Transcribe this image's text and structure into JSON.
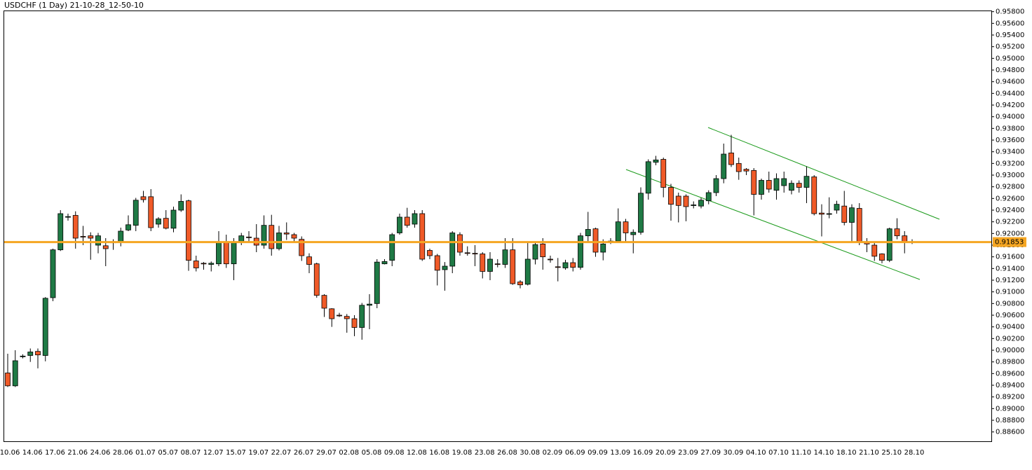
{
  "chart_data": {
    "type": "candlestick",
    "title": "USDCHF (1 Day) 21-10-28_12-50-10",
    "categories": [
      "10.06",
      null,
      null,
      "14.06",
      null,
      null,
      "17.06",
      null,
      null,
      "21.06",
      null,
      null,
      "24.06",
      null,
      null,
      "28.06",
      null,
      null,
      "01.07",
      null,
      null,
      "05.07",
      null,
      null,
      "08.07",
      null,
      null,
      "12.07",
      null,
      null,
      "15.07",
      null,
      null,
      "19.07",
      null,
      null,
      "22.07",
      null,
      null,
      "26.07",
      null,
      null,
      "29.07",
      null,
      null,
      "02.08",
      null,
      null,
      "05.08",
      null,
      null,
      "09.08",
      null,
      null,
      "12.08",
      null,
      null,
      "16.08",
      null,
      null,
      "19.08",
      null,
      null,
      "23.08",
      null,
      null,
      "26.08",
      null,
      null,
      "30.08",
      null,
      null,
      "02.09",
      null,
      null,
      "06.09",
      null,
      null,
      "09.09",
      null,
      null,
      "13.09",
      null,
      null,
      "16.09",
      null,
      null,
      "20.09",
      null,
      null,
      "23.09",
      null,
      null,
      "27.09",
      null,
      null,
      "30.09",
      null,
      null,
      "04.10",
      null,
      null,
      "07.10",
      null,
      null,
      "11.10",
      null,
      null,
      "14.10",
      null,
      null,
      "18.10",
      null,
      null,
      "21.10",
      null,
      null,
      "25.10",
      null,
      null,
      "28.10"
    ],
    "ohlc": [
      [
        0.8961,
        0.8994,
        0.8937,
        0.8939
      ],
      [
        0.8939,
        0.9,
        0.8937,
        0.8982
      ],
      [
        0.8989,
        0.8993,
        0.8986,
        0.899
      ],
      [
        0.8991,
        0.9003,
        0.898,
        0.8997
      ],
      [
        0.8998,
        0.9003,
        0.8969,
        0.8992
      ],
      [
        0.8991,
        0.9091,
        0.8981,
        0.9089
      ],
      [
        0.909,
        0.9174,
        0.9084,
        0.9172
      ],
      [
        0.9172,
        0.924,
        0.917,
        0.9234
      ],
      [
        0.9228,
        0.9234,
        0.9222,
        0.9229
      ],
      [
        0.9231,
        0.9238,
        0.9174,
        0.9192
      ],
      [
        0.9195,
        0.9213,
        0.918,
        0.9194
      ],
      [
        0.9196,
        0.9202,
        0.9155,
        0.9192
      ],
      [
        0.918,
        0.9201,
        0.9166,
        0.9196
      ],
      [
        0.9179,
        0.9192,
        0.9144,
        0.9174
      ],
      [
        0.9184,
        0.919,
        0.9172,
        0.9186
      ],
      [
        0.9186,
        0.921,
        0.9178,
        0.9204
      ],
      [
        0.9206,
        0.9231,
        0.9204,
        0.9215
      ],
      [
        0.9214,
        0.9261,
        0.9204,
        0.9257
      ],
      [
        0.9263,
        0.9273,
        0.9253,
        0.9258
      ],
      [
        0.9263,
        0.9276,
        0.9204,
        0.921
      ],
      [
        0.9216,
        0.9228,
        0.921,
        0.9225
      ],
      [
        0.9226,
        0.924,
        0.9207,
        0.9209
      ],
      [
        0.9209,
        0.9246,
        0.9202,
        0.924
      ],
      [
        0.924,
        0.9267,
        0.9237,
        0.9255
      ],
      [
        0.9256,
        0.9258,
        0.9136,
        0.9154
      ],
      [
        0.9153,
        0.9162,
        0.9135,
        0.9141
      ],
      [
        0.9149,
        0.9151,
        0.9138,
        0.9148
      ],
      [
        0.9147,
        0.9152,
        0.9135,
        0.9149
      ],
      [
        0.9148,
        0.9204,
        0.9144,
        0.9184
      ],
      [
        0.9185,
        0.9198,
        0.9141,
        0.9148
      ],
      [
        0.9148,
        0.9192,
        0.912,
        0.9186
      ],
      [
        0.9186,
        0.9201,
        0.918,
        0.9196
      ],
      [
        0.9194,
        0.9204,
        0.9186,
        0.9193
      ],
      [
        0.9192,
        0.9216,
        0.9168,
        0.918
      ],
      [
        0.918,
        0.9231,
        0.9174,
        0.9214
      ],
      [
        0.9214,
        0.9232,
        0.9162,
        0.9174
      ],
      [
        0.9174,
        0.9213,
        0.9171,
        0.9201
      ],
      [
        0.9201,
        0.9219,
        0.9189,
        0.9199
      ],
      [
        0.9198,
        0.9201,
        0.9186,
        0.9192
      ],
      [
        0.919,
        0.9195,
        0.9153,
        0.9162
      ],
      [
        0.916,
        0.9166,
        0.9132,
        0.9147
      ],
      [
        0.9148,
        0.915,
        0.909,
        0.9094
      ],
      [
        0.9094,
        0.9096,
        0.9057,
        0.9072
      ],
      [
        0.9071,
        0.9072,
        0.904,
        0.9054
      ],
      [
        0.906,
        0.9064,
        0.9057,
        0.9059
      ],
      [
        0.9058,
        0.9062,
        0.903,
        0.9054
      ],
      [
        0.9054,
        0.906,
        0.9024,
        0.9039
      ],
      [
        0.9039,
        0.9081,
        0.9018,
        0.9077
      ],
      [
        0.9077,
        0.9096,
        0.9036,
        0.9079
      ],
      [
        0.908,
        0.9156,
        0.9072,
        0.9151
      ],
      [
        0.9148,
        0.9156,
        0.9147,
        0.9152
      ],
      [
        0.9154,
        0.9201,
        0.9144,
        0.9198
      ],
      [
        0.9201,
        0.9234,
        0.9198,
        0.9228
      ],
      [
        0.9228,
        0.9244,
        0.921,
        0.9214
      ],
      [
        0.9216,
        0.924,
        0.921,
        0.9234
      ],
      [
        0.9234,
        0.924,
        0.9153,
        0.9156
      ],
      [
        0.9171,
        0.9174,
        0.9156,
        0.9162
      ],
      [
        0.9162,
        0.9165,
        0.9111,
        0.9137
      ],
      [
        0.9138,
        0.9151,
        0.9102,
        0.9144
      ],
      [
        0.9144,
        0.9204,
        0.9132,
        0.9201
      ],
      [
        0.9198,
        0.9202,
        0.9162,
        0.9168
      ],
      [
        0.9167,
        0.9178,
        0.9162,
        0.9166
      ],
      [
        0.9166,
        0.918,
        0.9144,
        0.9165
      ],
      [
        0.9165,
        0.9168,
        0.9123,
        0.9135
      ],
      [
        0.9135,
        0.9168,
        0.912,
        0.9156
      ],
      [
        0.9148,
        0.9156,
        0.9142,
        0.9147
      ],
      [
        0.9147,
        0.9192,
        0.9141,
        0.9172
      ],
      [
        0.9172,
        0.9192,
        0.9112,
        0.9114
      ],
      [
        0.9117,
        0.912,
        0.9106,
        0.9112
      ],
      [
        0.9113,
        0.9186,
        0.9111,
        0.9156
      ],
      [
        0.9156,
        0.9186,
        0.9147,
        0.9181
      ],
      [
        0.9182,
        0.9192,
        0.9138,
        0.916
      ],
      [
        0.9156,
        0.9162,
        0.915,
        0.9155
      ],
      [
        0.9143,
        0.9158,
        0.9118,
        0.9142
      ],
      [
        0.9141,
        0.9155,
        0.9138,
        0.915
      ],
      [
        0.915,
        0.9158,
        0.9135,
        0.9142
      ],
      [
        0.9142,
        0.9201,
        0.9138,
        0.9196
      ],
      [
        0.9196,
        0.9237,
        0.9186,
        0.9207
      ],
      [
        0.9208,
        0.921,
        0.916,
        0.9168
      ],
      [
        0.9168,
        0.919,
        0.9154,
        0.9182
      ],
      [
        0.9185,
        0.9192,
        0.9182,
        0.9187
      ],
      [
        0.9187,
        0.9243,
        0.9184,
        0.922
      ],
      [
        0.922,
        0.9225,
        0.9184,
        0.9201
      ],
      [
        0.9198,
        0.9207,
        0.9166,
        0.9202
      ],
      [
        0.9202,
        0.9279,
        0.9198,
        0.9269
      ],
      [
        0.9269,
        0.9327,
        0.9258,
        0.9323
      ],
      [
        0.9322,
        0.9333,
        0.9317,
        0.9326
      ],
      [
        0.9327,
        0.933,
        0.9262,
        0.9279
      ],
      [
        0.9279,
        0.9285,
        0.9222,
        0.925
      ],
      [
        0.9264,
        0.927,
        0.9219,
        0.9248
      ],
      [
        0.9264,
        0.9267,
        0.9221,
        0.9246
      ],
      [
        0.9248,
        0.9255,
        0.9243,
        0.9249
      ],
      [
        0.9247,
        0.9261,
        0.9243,
        0.9257
      ],
      [
        0.9256,
        0.9274,
        0.925,
        0.927
      ],
      [
        0.927,
        0.93,
        0.9264,
        0.9294
      ],
      [
        0.9294,
        0.9354,
        0.9286,
        0.9336
      ],
      [
        0.9338,
        0.9369,
        0.9314,
        0.9318
      ],
      [
        0.932,
        0.933,
        0.9292,
        0.9306
      ],
      [
        0.931,
        0.9312,
        0.93,
        0.9307
      ],
      [
        0.9308,
        0.9312,
        0.9231,
        0.9267
      ],
      [
        0.9267,
        0.9294,
        0.9258,
        0.9291
      ],
      [
        0.9291,
        0.9306,
        0.927,
        0.9276
      ],
      [
        0.9274,
        0.9303,
        0.9258,
        0.9294
      ],
      [
        0.9282,
        0.9306,
        0.927,
        0.9294
      ],
      [
        0.9274,
        0.9291,
        0.9267,
        0.9286
      ],
      [
        0.9286,
        0.9291,
        0.927,
        0.9279
      ],
      [
        0.9279,
        0.9315,
        0.9252,
        0.9298
      ],
      [
        0.9297,
        0.93,
        0.9231,
        0.9234
      ],
      [
        0.9235,
        0.925,
        0.9195,
        0.9233
      ],
      [
        0.9233,
        0.9262,
        0.9226,
        0.9234
      ],
      [
        0.924,
        0.9256,
        0.9234,
        0.925
      ],
      [
        0.9247,
        0.9273,
        0.9214,
        0.9219
      ],
      [
        0.9219,
        0.925,
        0.9186,
        0.9244
      ],
      [
        0.9243,
        0.9252,
        0.918,
        0.9186
      ],
      [
        0.9186,
        0.9192,
        0.9168,
        0.9182
      ],
      [
        0.918,
        0.9184,
        0.9153,
        0.9161
      ],
      [
        0.9165,
        0.9166,
        0.9149,
        0.9154
      ],
      [
        0.9154,
        0.921,
        0.9151,
        0.9208
      ],
      [
        0.9208,
        0.9226,
        0.919,
        0.9196
      ],
      [
        0.9196,
        0.9204,
        0.9166,
        0.9186
      ],
      [
        0.9186,
        0.919,
        0.9182,
        0.91853
      ]
    ],
    "up_color": "#1f7a45",
    "down_color": "#f05a28",
    "last_price": 0.91853,
    "price_line_color": "#f5a623",
    "ylim": [
      0.8844,
      0.9582
    ],
    "yticks": [
      {
        "value": 0.886,
        "label": "0.88600"
      },
      {
        "value": 0.888,
        "label": "0.88800"
      },
      {
        "value": 0.89,
        "label": "0.89000"
      },
      {
        "value": 0.892,
        "label": "0.89200"
      },
      {
        "value": 0.894,
        "label": "0.89400"
      },
      {
        "value": 0.896,
        "label": "0.89600"
      },
      {
        "value": 0.898,
        "label": "0.89800"
      },
      {
        "value": 0.9,
        "label": "0.90000"
      },
      {
        "value": 0.902,
        "label": "0.90200"
      },
      {
        "value": 0.904,
        "label": "0.90400"
      },
      {
        "value": 0.906,
        "label": "0.90600"
      },
      {
        "value": 0.908,
        "label": "0.90800"
      },
      {
        "value": 0.91,
        "label": "0.91000"
      },
      {
        "value": 0.912,
        "label": "0.91200"
      },
      {
        "value": 0.914,
        "label": "0.91400"
      },
      {
        "value": 0.916,
        "label": "0.91600"
      },
      {
        "value": 0.918,
        "label": "0.91800"
      },
      {
        "value": 0.92,
        "label": "0.92000"
      },
      {
        "value": 0.922,
        "label": "0.92200"
      },
      {
        "value": 0.924,
        "label": "0.92400"
      },
      {
        "value": 0.926,
        "label": "0.92600"
      },
      {
        "value": 0.928,
        "label": "0.92800"
      },
      {
        "value": 0.93,
        "label": "0.93000"
      },
      {
        "value": 0.932,
        "label": "0.93200"
      },
      {
        "value": 0.934,
        "label": "0.93400"
      },
      {
        "value": 0.936,
        "label": "0.93600"
      },
      {
        "value": 0.938,
        "label": "0.93800"
      },
      {
        "value": 0.94,
        "label": "0.94000"
      },
      {
        "value": 0.942,
        "label": "0.94200"
      },
      {
        "value": 0.944,
        "label": "0.94400"
      },
      {
        "value": 0.946,
        "label": "0.94600"
      },
      {
        "value": 0.948,
        "label": "0.94800"
      },
      {
        "value": 0.95,
        "label": "0.95000"
      },
      {
        "value": 0.952,
        "label": "0.95200"
      },
      {
        "value": 0.954,
        "label": "0.95400"
      },
      {
        "value": 0.956,
        "label": "0.95600"
      },
      {
        "value": 0.958,
        "label": "0.95800"
      }
    ]
  }
}
